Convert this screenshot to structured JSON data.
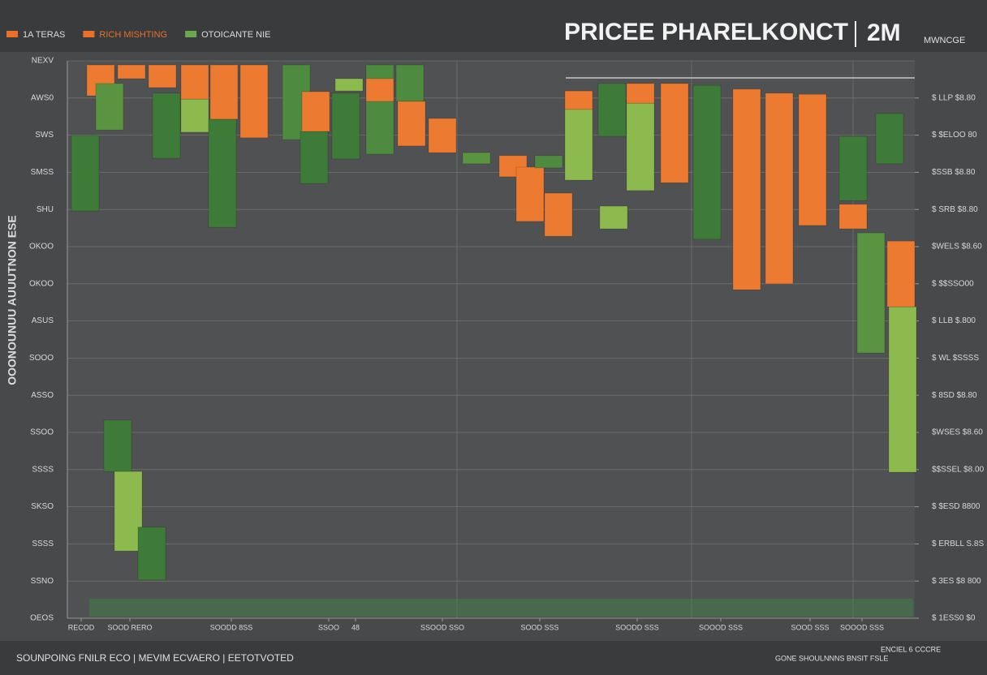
{
  "chart_data": {
    "type": "candlestick",
    "title": "PRICEE PHARELKONCT",
    "title_suffix": "2M",
    "subtitle": "MWNCGE",
    "y_axis_label": "OOONOUNUU AUUUTNON ESE",
    "legend": [
      {
        "name": "1A TERAS",
        "color": "#e8702a"
      },
      {
        "name": "RICH MISHTING",
        "color": "#e8702a"
      },
      {
        "name": "OTOICANTE NIE",
        "color": "#6aa84f"
      }
    ],
    "footer_left": "SOUNPOING FNILR ECO | MEVIM ECVAERO | EETOTVOTED",
    "footer_right": "GONE SHOULNNNS BNSIT FSLE",
    "footer_right_top": "ENCIEL 6 CCCRE",
    "xlim": [
      0,
      1044
    ],
    "xticks": [
      {
        "value": 17,
        "label": "RECOD"
      },
      {
        "value": 77,
        "label": "SOOD RERO"
      },
      {
        "value": 202,
        "label": "SOODD 8SS"
      },
      {
        "value": 322,
        "label": "SSOO"
      },
      {
        "value": 355,
        "label": "48"
      },
      {
        "value": 462,
        "label": "SSOOD SSO"
      },
      {
        "value": 582,
        "label": "SOOD SSS"
      },
      {
        "value": 702,
        "label": "SOODD SSS"
      },
      {
        "value": 805,
        "label": "SOOOD SSS"
      },
      {
        "value": 915,
        "label": "SOOD SSS"
      },
      {
        "value": 979,
        "label": "SOOOD SSS"
      }
    ],
    "ylim": [
      0,
      15
    ],
    "yticks": [
      {
        "value": 0,
        "label": "OEOS"
      },
      {
        "value": 1,
        "label": "SSNO"
      },
      {
        "value": 2,
        "label": "SSSS"
      },
      {
        "value": 3,
        "label": "SKSO"
      },
      {
        "value": 4,
        "label": "SSSS"
      },
      {
        "value": 5,
        "label": "SSOO"
      },
      {
        "value": 6,
        "label": "ASSO"
      },
      {
        "value": 7,
        "label": "SOOO"
      },
      {
        "value": 8,
        "label": "ASUS"
      },
      {
        "value": 9,
        "label": "OKOO"
      },
      {
        "value": 10,
        "label": "OKOO"
      },
      {
        "value": 11,
        "label": "SHU"
      },
      {
        "value": 12,
        "label": "SMSS"
      },
      {
        "value": 13,
        "label": "SWS"
      },
      {
        "value": 14,
        "label": "AWS0"
      },
      {
        "value": 15,
        "label": "NEXV"
      }
    ],
    "y2lim": [
      0,
      15
    ],
    "y2ticks": [
      {
        "value": 0,
        "label": "$ 1ESS0 $0"
      },
      {
        "value": 1,
        "label": "$ 3ES $8 800"
      },
      {
        "value": 2,
        "label": "$ ERBLL S.8S"
      },
      {
        "value": 3,
        "label": "$ $ESD 8800"
      },
      {
        "value": 4,
        "label": "$$SSEL $8.00"
      },
      {
        "value": 5,
        "label": "$WSES $8.60"
      },
      {
        "value": 6,
        "label": "$ 8SD $8.80"
      },
      {
        "value": 7,
        "label": "$ WL $SSSS"
      },
      {
        "value": 8,
        "label": "$ LLB $.800"
      },
      {
        "value": 9,
        "label": "$ $$SSO00"
      },
      {
        "value": 10,
        "label": "$WELS $8.60"
      },
      {
        "value": 11,
        "label": "$ SRB $8.80"
      },
      {
        "value": 12,
        "label": "$SSB $8.80"
      },
      {
        "value": 13,
        "label": "$ $ELOO 80"
      },
      {
        "value": 14,
        "label": "$ LLP $8.80"
      }
    ],
    "grid": true,
    "candles": [
      {
        "x": 22,
        "open": 12.99,
        "close": 10.96,
        "color": "#3f7b38"
      },
      {
        "x": 41,
        "open": 14.89,
        "close": 14.06,
        "color": "#ec7a30"
      },
      {
        "x": 52,
        "open": 14.39,
        "close": 13.14,
        "color": "#5a9440"
      },
      {
        "x": 79,
        "open": 14.89,
        "close": 14.52,
        "color": "#ec7a30"
      },
      {
        "x": 117,
        "open": 14.89,
        "close": 14.28,
        "color": "#ec7a30"
      },
      {
        "x": 122,
        "open": 14.13,
        "close": 12.38,
        "color": "#3f7b38"
      },
      {
        "x": 157,
        "open": 14.89,
        "close": 13.97,
        "color": "#ec7a30"
      },
      {
        "x": 157,
        "open": 13.97,
        "close": 13.08,
        "color": "#8cba4e"
      },
      {
        "x": 191,
        "open": 13.43,
        "close": 10.52,
        "color": "#3f7b38"
      },
      {
        "x": 193,
        "open": 14.89,
        "close": 13.43,
        "color": "#ec7a30"
      },
      {
        "x": 230,
        "open": 14.89,
        "close": 12.93,
        "color": "#ec7a30"
      },
      {
        "x": 282,
        "open": 14.89,
        "close": 12.88,
        "color": "#4e8a40"
      },
      {
        "x": 304,
        "open": 13.1,
        "close": 11.7,
        "color": "#3f7b38"
      },
      {
        "x": 306,
        "open": 14.17,
        "close": 13.1,
        "color": "#ec7a30"
      },
      {
        "x": 343,
        "open": 14.13,
        "close": 12.36,
        "color": "#3f7b38"
      },
      {
        "x": 347,
        "open": 14.52,
        "close": 14.19,
        "color": "#8cba4e"
      },
      {
        "x": 385,
        "open": 14.89,
        "close": 12.49,
        "color": "#4e8a40"
      },
      {
        "x": 385,
        "open": 14.52,
        "close": 13.91,
        "color": "#ec7a30"
      },
      {
        "x": 422,
        "open": 14.89,
        "close": 13.91,
        "color": "#4e8a40"
      },
      {
        "x": 424,
        "open": 13.91,
        "close": 12.71,
        "color": "#ec7a30"
      },
      {
        "x": 462,
        "open": 13.45,
        "close": 12.53,
        "color": "#ec7a30"
      },
      {
        "x": 504,
        "open": 12.53,
        "close": 12.23,
        "color": "#5a9440"
      },
      {
        "x": 549,
        "open": 12.45,
        "close": 11.88,
        "color": "#ec7a30"
      },
      {
        "x": 570,
        "open": 12.14,
        "close": 10.68,
        "color": "#ec7a30"
      },
      {
        "x": 593,
        "open": 12.45,
        "close": 12.12,
        "color": "#4e8a40"
      },
      {
        "x": 605,
        "open": 11.44,
        "close": 10.28,
        "color": "#ec7a30"
      },
      {
        "x": 630,
        "open": 14.19,
        "close": 13.69,
        "color": "#ec7a30"
      },
      {
        "x": 630,
        "open": 13.69,
        "close": 11.79,
        "color": "#8cba4e"
      },
      {
        "x": 671,
        "open": 14.39,
        "close": 12.97,
        "color": "#3f7b38"
      },
      {
        "x": 673,
        "open": 11.09,
        "close": 10.48,
        "color": "#8cba4e"
      },
      {
        "x": 706,
        "open": 14.39,
        "close": 13.86,
        "color": "#ec7a30"
      },
      {
        "x": 706,
        "open": 13.86,
        "close": 11.51,
        "color": "#8cba4e"
      },
      {
        "x": 748,
        "open": 14.39,
        "close": 11.72,
        "color": "#ec7a30"
      },
      {
        "x": 788,
        "open": 14.34,
        "close": 10.2,
        "color": "#3f7b38"
      },
      {
        "x": 837,
        "open": 14.24,
        "close": 8.84,
        "color": "#ec7a30"
      },
      {
        "x": 877,
        "open": 14.13,
        "close": 9.0,
        "color": "#ec7a30"
      },
      {
        "x": 918,
        "open": 14.1,
        "close": 10.57,
        "color": "#ec7a30"
      },
      {
        "x": 968,
        "open": 12.97,
        "close": 11.24,
        "color": "#3f7b38"
      },
      {
        "x": 968,
        "open": 11.14,
        "close": 10.48,
        "color": "#ec7a30"
      },
      {
        "x": 1013,
        "open": 13.58,
        "close": 12.23,
        "color": "#3f7b38"
      },
      {
        "x": 990,
        "open": 10.37,
        "close": 7.14,
        "color": "#5a9440"
      },
      {
        "x": 1027,
        "open": 10.15,
        "close": 8.38,
        "color": "#ec7a30"
      },
      {
        "x": 1029,
        "open": 8.38,
        "close": 3.93,
        "color": "#8cba4e"
      },
      {
        "x": 62,
        "open": 5.33,
        "close": 3.95,
        "color": "#3f7b38"
      },
      {
        "x": 75,
        "open": 3.95,
        "close": 1.81,
        "color": "#8cba4e"
      },
      {
        "x": 104,
        "open": 2.45,
        "close": 1.03,
        "color": "#3f7b38"
      }
    ]
  }
}
